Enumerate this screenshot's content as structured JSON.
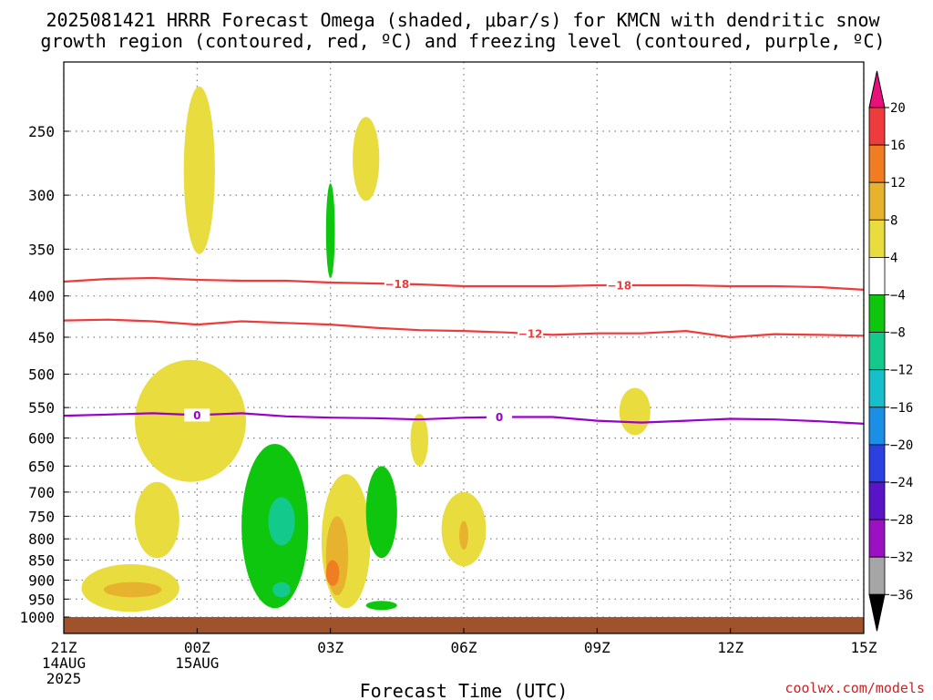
{
  "title": {
    "line1": "2025081421 HRRR Forecast Omega (shaded, μbar/s) for KMCN with dendritic snow",
    "line2": "growth region (contoured, red, ºC) and freezing level (contoured, purple, ºC)"
  },
  "credit": "coolwx.com/models",
  "colors": {
    "grid": "#808080",
    "dgz_contour": "#ee3b3b",
    "freezing_contour": "#9a00cc",
    "ground": "#a0522d"
  },
  "chart_data": {
    "type": "heatmap",
    "subtype": "time-height cross-section",
    "xlabel": "Forecast Time (UTC)",
    "ylabel": "",
    "x_unit": "hours since 2025-08-14 21Z",
    "xlim": [
      0,
      18
    ],
    "ylim": [
      1050,
      200
    ],
    "y_scale": "log (pressure, hPa)",
    "grid": true,
    "x_ticks": [
      {
        "x": 0,
        "lines": [
          "21Z",
          "14AUG",
          "2025"
        ]
      },
      {
        "x": 3,
        "lines": [
          "00Z",
          "15AUG"
        ]
      },
      {
        "x": 6,
        "lines": [
          "03Z"
        ]
      },
      {
        "x": 9,
        "lines": [
          "06Z"
        ]
      },
      {
        "x": 12,
        "lines": [
          "09Z"
        ]
      },
      {
        "x": 15,
        "lines": [
          "12Z"
        ]
      },
      {
        "x": 18,
        "lines": [
          "15Z"
        ]
      }
    ],
    "y_ticks": [
      "250",
      "300",
      "350",
      "400",
      "450",
      "500",
      "550",
      "600",
      "650",
      "700",
      "750",
      "800",
      "850",
      "900",
      "950",
      "1000"
    ],
    "colorbar": {
      "label_values": [
        "20",
        "16",
        "12",
        "8",
        "4",
        "−4",
        "−8",
        "−12",
        "−16",
        "−20",
        "−24",
        "−28",
        "−32",
        "−36"
      ],
      "bins": [
        {
          "from": 20,
          "to": null,
          "color": "#e8107a"
        },
        {
          "from": 16,
          "to": 20,
          "color": "#ee3b3b"
        },
        {
          "from": 12,
          "to": 16,
          "color": "#f07d22"
        },
        {
          "from": 8,
          "to": 12,
          "color": "#e7b22e"
        },
        {
          "from": 4,
          "to": 8,
          "color": "#e8dc3f"
        },
        {
          "from": -4,
          "to": 4,
          "color": "#ffffff"
        },
        {
          "from": -8,
          "to": -4,
          "color": "#0fc60f"
        },
        {
          "from": -12,
          "to": -8,
          "color": "#14c98c"
        },
        {
          "from": -16,
          "to": -12,
          "color": "#16bfc9"
        },
        {
          "from": -20,
          "to": -16,
          "color": "#1b8ee6"
        },
        {
          "from": -24,
          "to": -20,
          "color": "#2c3fe0"
        },
        {
          "from": -28,
          "to": -24,
          "color": "#5a14c8"
        },
        {
          "from": -32,
          "to": -28,
          "color": "#9b10c2"
        },
        {
          "from": -36,
          "to": -32,
          "color": "#a6a6a6"
        },
        {
          "from": null,
          "to": -36,
          "color": "#000000"
        }
      ]
    },
    "omega_regions": [
      {
        "bin": "4 to 8",
        "color": "#e8dc3f",
        "hours": [
          2.7,
          3.4
        ],
        "p_range": [
          220,
          355
        ]
      },
      {
        "bin": "4 to 8",
        "color": "#e8dc3f",
        "hours": [
          6.5,
          7.1
        ],
        "p_range": [
          240,
          305
        ]
      },
      {
        "bin": "4 to 8",
        "color": "#e8dc3f",
        "hours": [
          1.6,
          4.1
        ],
        "p_range": [
          480,
          680
        ]
      },
      {
        "bin": "4 to 8",
        "color": "#e8dc3f",
        "hours": [
          1.6,
          2.6
        ],
        "p_range": [
          680,
          845
        ]
      },
      {
        "bin": "4 to 8",
        "color": "#e8dc3f",
        "hours": [
          0.4,
          2.6
        ],
        "p_range": [
          860,
          985
        ]
      },
      {
        "bin": "8 to 12",
        "color": "#e7b22e",
        "hours": [
          0.9,
          2.2
        ],
        "p_range": [
          905,
          945
        ]
      },
      {
        "bin": "4 to 8",
        "color": "#e8dc3f",
        "hours": [
          5.8,
          6.9
        ],
        "p_range": [
          665,
          975
        ]
      },
      {
        "bin": "8 to 12",
        "color": "#e7b22e",
        "hours": [
          5.9,
          6.4
        ],
        "p_range": [
          750,
          940
        ]
      },
      {
        "bin": "12 to 16",
        "color": "#f07d22",
        "hours": [
          5.9,
          6.2
        ],
        "p_range": [
          850,
          915
        ]
      },
      {
        "bin": "4 to 8",
        "color": "#e8dc3f",
        "hours": [
          8.5,
          9.5
        ],
        "p_range": [
          700,
          865
        ]
      },
      {
        "bin": "8 to 12",
        "color": "#e7b22e",
        "hours": [
          8.9,
          9.1
        ],
        "p_range": [
          760,
          825
        ]
      },
      {
        "bin": "4 to 8",
        "color": "#e8dc3f",
        "hours": [
          7.8,
          8.2
        ],
        "p_range": [
          560,
          650
        ]
      },
      {
        "bin": "4 to 8",
        "color": "#e8dc3f",
        "hours": [
          12.5,
          13.2
        ],
        "p_range": [
          520,
          595
        ]
      },
      {
        "bin": "-8 to -4",
        "color": "#0fc60f",
        "hours": [
          4.0,
          5.5
        ],
        "p_range": [
          610,
          975
        ]
      },
      {
        "bin": "-12 to -8",
        "color": "#14c98c",
        "hours": [
          4.6,
          5.2
        ],
        "p_range": [
          710,
          815
        ]
      },
      {
        "bin": "-12 to -8",
        "color": "#14c98c",
        "hours": [
          4.7,
          5.1
        ],
        "p_range": [
          905,
          945
        ]
      },
      {
        "bin": "-8 to -4",
        "color": "#0fc60f",
        "hours": [
          5.9,
          6.1
        ],
        "p_range": [
          290,
          380
        ]
      },
      {
        "bin": "-8 to -4",
        "color": "#0fc60f",
        "hours": [
          6.8,
          7.5
        ],
        "p_range": [
          650,
          845
        ]
      },
      {
        "bin": "-8 to -4",
        "color": "#0fc60f",
        "hours": [
          6.8,
          7.5
        ],
        "p_range": [
          955,
          980
        ]
      }
    ],
    "contours": [
      {
        "name": "-18",
        "color": "#ee3b3b",
        "label": "−18",
        "label_at_hours": [
          7.5,
          12.5
        ],
        "hours": [
          0,
          1,
          2,
          3,
          4,
          5,
          6,
          7,
          8,
          9,
          10,
          11,
          12,
          13,
          14,
          15,
          16,
          17,
          18
        ],
        "pressure": [
          384,
          381,
          380,
          382,
          383,
          383,
          385,
          386,
          387,
          389,
          389,
          389,
          388,
          388,
          388,
          389,
          389,
          390,
          393
        ]
      },
      {
        "name": "-12",
        "color": "#ee3b3b",
        "label": "−12",
        "label_at_hours": [
          10.5
        ],
        "hours": [
          0,
          1,
          2,
          3,
          4,
          5,
          6,
          7,
          8,
          9,
          10,
          11,
          12,
          13,
          14,
          15,
          16,
          17,
          18
        ],
        "pressure": [
          429,
          428,
          430,
          434,
          430,
          432,
          434,
          438,
          441,
          442,
          444,
          447,
          445,
          445,
          442,
          450,
          446,
          447,
          448
        ]
      },
      {
        "name": "0",
        "color": "#9a00cc",
        "label": "0",
        "label_at_hours": [
          3,
          9.8
        ],
        "hours": [
          0,
          1,
          2,
          3,
          4,
          5,
          6,
          7,
          8,
          9,
          10,
          11,
          12,
          13,
          14,
          15,
          16,
          17,
          18
        ],
        "pressure": [
          563,
          561,
          559,
          562,
          559,
          564,
          566,
          567,
          569,
          566,
          565,
          565,
          571,
          574,
          571,
          568,
          569,
          572,
          576
        ]
      }
    ]
  }
}
